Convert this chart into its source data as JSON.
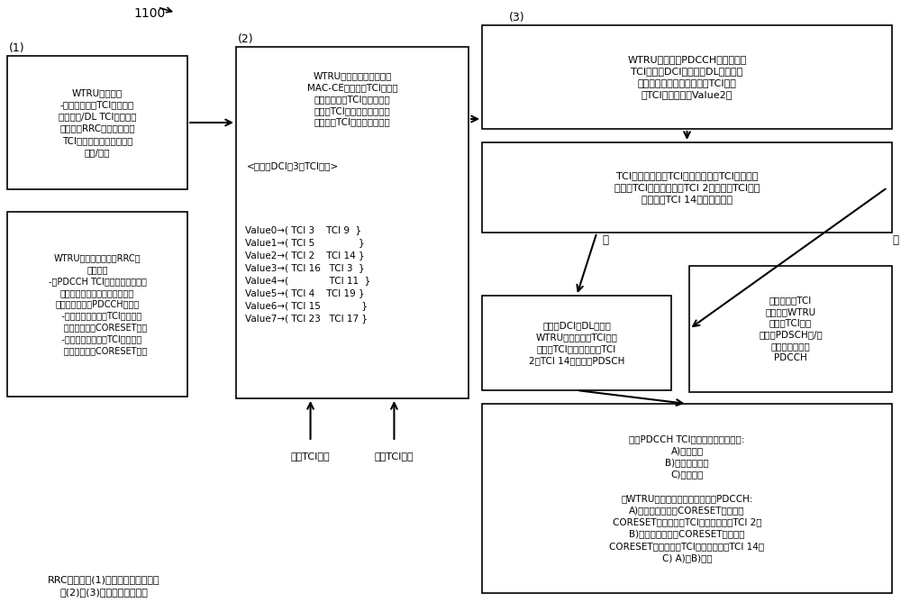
{
  "bg_color": "#ffffff",
  "title_label": "1100",
  "label1": "(1)",
  "label2": "(2)",
  "label3": "(3)",
  "box1_text": "WTRU可接收：\n-多个（统一）TCI状态（例\n如，联合/DL TCI状态）的\n（例如，RRC）配置，每个\nTCI状态适用于一个或多个\n信道/信号",
  "box2_header": "WTRU可接收（例如，经由\nMAC-CE）对多个TCI状态中\n的一个或两个TCI状态与一个\n或多个TCI值（例如，码点）\n中的每个TCI值的关联的指示",
  "box2_sub": "<例如，DCI的3位TCI字段>",
  "box2_values": "Value0→( TCI 3    TCI 9  }\nValue1→( TCI 5               }\nValue2→( TCI 2    TCI 14 }\nValue3→( TCI 16   TCI 3  }\nValue4→(              TCI 11  }\nValue5→( TCI 4    TCI 19 }\nValue6→( TCI 15              }\nValue7→( TCI 23   TCI 17 }",
  "box3_text": "WTRU可在第一PDCCH中接收包括\nTCI字段的DCI（例如，DL授权），\n其中该字段标识一个或多个TCI值中\n的TCI值（例如，Value2）",
  "box4_text": "TCI值是否与多个TCI状态中的两个TCI状态（包\n括第一TCI状态（例如，TCI 2）和第二TCI状态\n（例如，TCI 14））相关联？",
  "box5_text": "（如果DCI是DL授权）\nWTRU可使用第一TCI状态\n和第二TCI状态（例如，TCI\n2、TCI 14）来接收PDSCH",
  "box6_text": "如果是一个TCI\n状态，则WTRU\n可将该TCI状态\n应用于PDSCH和/或\n第二（稍后的）\nPDCCH",
  "box7_text": "WTRU可接收（例如，RRC或\n动态）：\n-对PDCCH TCI状态使用的指示，\n其指示是否将第一关联、第二关\n联或两者应用于PDCCH接收：\n   -第一关联可将第一TCI实例与第\n      一一个或两个CORESET关联\n   -第二关联可将第二TCI实例与第\n      二一个或多个CORESET关联",
  "box8_text": "如果PDCCH TCI状态使用指示要应用:\nA)第一关联\nB)第二关联，或\nC)两种关联\n\n则WTRU分别经由以下来接收第二PDCCH:\nA)第一一个或多个CORESET中的一个\nCORESET，使用第一TCI状态（例如，TCI 2）\nB)第二一个或多个CORESET中的一个\nCORESET，使用第二TCI状态（例如，TCI 14）\nC) A)和B)两者",
  "yes_label": "是",
  "no_label": "否",
  "arrow_label1": "第一TCI实例",
  "arrow_label2": "第二TCI实例",
  "bottom_text": "RRC配置例如(1)的一部分，或者例如\n在(2)与(3)之间的任何动态项"
}
